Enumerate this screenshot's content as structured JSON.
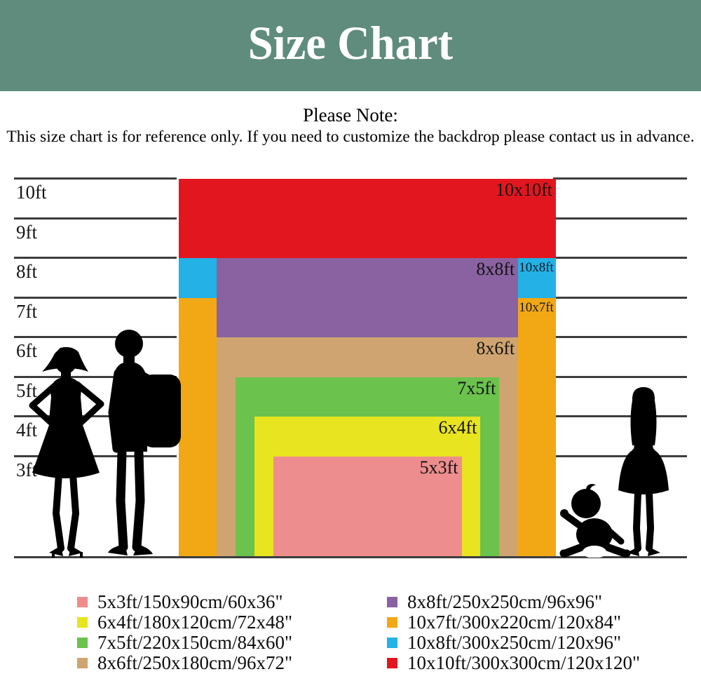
{
  "header": {
    "title": "Size Chart",
    "bg_color": "#5f8c7c",
    "text_color": "#ffffff"
  },
  "note": {
    "heading": "Please Note:",
    "body": "This size chart is for reference only. If you need to customize the backdrop please contact us in advance."
  },
  "chart_data": {
    "type": "nested-rectangles",
    "unit": "ft",
    "axis": {
      "max_ft": 10,
      "tick_values": [
        10,
        9,
        8,
        7,
        6,
        5,
        4,
        3
      ],
      "tick_labels": [
        "10ft",
        "9ft",
        "8ft",
        "7ft",
        "6ft",
        "5ft",
        "4ft",
        "3ft"
      ]
    },
    "line_color": "#3d3d3d",
    "sizes": [
      {
        "id": "10x10",
        "label": "10x10ft",
        "width_ft": 10,
        "height_ft": 10,
        "color": "#e2161f",
        "label_pos": "in",
        "legend": "10x10ft/300x300cm/120x120\""
      },
      {
        "id": "10x8",
        "label": "10x8ft",
        "width_ft": 10,
        "height_ft": 8,
        "color": "#24b1e5",
        "label_pos": "side",
        "legend": "10x8ft/300x250cm/120x96\""
      },
      {
        "id": "10x7",
        "label": "10x7ft",
        "width_ft": 10,
        "height_ft": 7,
        "color": "#f2a714",
        "label_pos": "side",
        "legend": "10x7ft/300x220cm/120x84\""
      },
      {
        "id": "8x8",
        "label": "8x8ft",
        "width_ft": 8,
        "height_ft": 8,
        "color": "#8a62a2",
        "label_pos": "in",
        "legend": "8x8ft/250x250cm/96x96\""
      },
      {
        "id": "8x6",
        "label": "8x6ft",
        "width_ft": 8,
        "height_ft": 6,
        "color": "#cfa470",
        "label_pos": "in",
        "legend": "8x6ft/250x180cm/96x72\""
      },
      {
        "id": "7x5",
        "label": "7x5ft",
        "width_ft": 7,
        "height_ft": 5,
        "color": "#6bc24d",
        "label_pos": "in",
        "legend": "7x5ft/220x150cm/84x60\""
      },
      {
        "id": "6x4",
        "label": "6x4ft",
        "width_ft": 6,
        "height_ft": 4,
        "color": "#e8e41f",
        "label_pos": "in",
        "legend": "6x4ft/180x120cm/72x48\""
      },
      {
        "id": "5x3",
        "label": "5x3ft",
        "width_ft": 5,
        "height_ft": 3,
        "color": "#ee8d8d",
        "label_pos": "in",
        "legend": "5x3ft/150x90cm/60x36\""
      }
    ],
    "legend": {
      "left_column": [
        "5x3",
        "6x4",
        "7x5",
        "8x6"
      ],
      "right_column": [
        "8x8",
        "10x7",
        "10x8",
        "10x10"
      ]
    }
  },
  "figures": [
    {
      "name": "woman"
    },
    {
      "name": "man-with-backpack"
    },
    {
      "name": "baby"
    },
    {
      "name": "girl"
    }
  ]
}
